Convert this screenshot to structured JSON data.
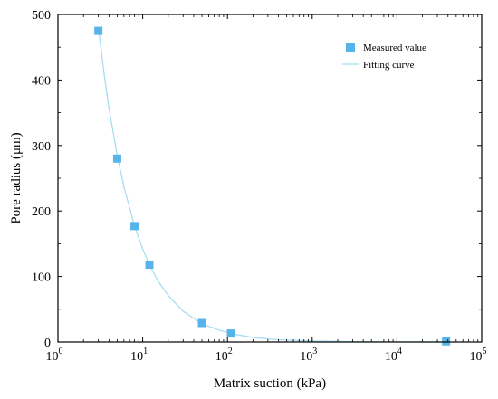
{
  "chart_data": {
    "type": "scatter",
    "xlabel": "Matrix suction (kPa)",
    "ylabel": "Pore radius (μm)",
    "x_scale": "log",
    "xlim": [
      1,
      100000
    ],
    "ylim": [
      0,
      500
    ],
    "x_ticks": [
      1,
      10,
      100,
      1000,
      10000,
      100000
    ],
    "x_tick_labels": [
      {
        "base": "10",
        "exp": "0"
      },
      {
        "base": "10",
        "exp": "1"
      },
      {
        "base": "10",
        "exp": "2"
      },
      {
        "base": "10",
        "exp": "3"
      },
      {
        "base": "10",
        "exp": "4"
      },
      {
        "base": "10",
        "exp": "5"
      }
    ],
    "y_ticks": [
      0,
      100,
      200,
      300,
      400,
      500
    ],
    "y_tick_labels": [
      "0",
      "100",
      "200",
      "300",
      "400",
      "500"
    ],
    "legend_position": "top-right",
    "grid": false,
    "series": [
      {
        "name": "Measured value",
        "kind": "scatter",
        "color": "#56B4E9",
        "marker": "square",
        "x": [
          3,
          5,
          8,
          12,
          50,
          110,
          38000
        ],
        "y": [
          475,
          280,
          177,
          118,
          29,
          13,
          1
        ]
      },
      {
        "name": "Fitting curve",
        "kind": "line",
        "color": "#A8DDF2",
        "x": [
          3,
          3.5,
          4,
          5,
          6,
          8,
          10,
          12,
          15,
          20,
          30,
          50,
          80,
          120,
          200,
          400,
          1000,
          3000,
          10000,
          38000
        ],
        "y": [
          480,
          410,
          357,
          285,
          237,
          177,
          142,
          118,
          94,
          71,
          47,
          28,
          18,
          12,
          7,
          3.5,
          1.5,
          0.5,
          0.2,
          0.05
        ]
      }
    ]
  }
}
